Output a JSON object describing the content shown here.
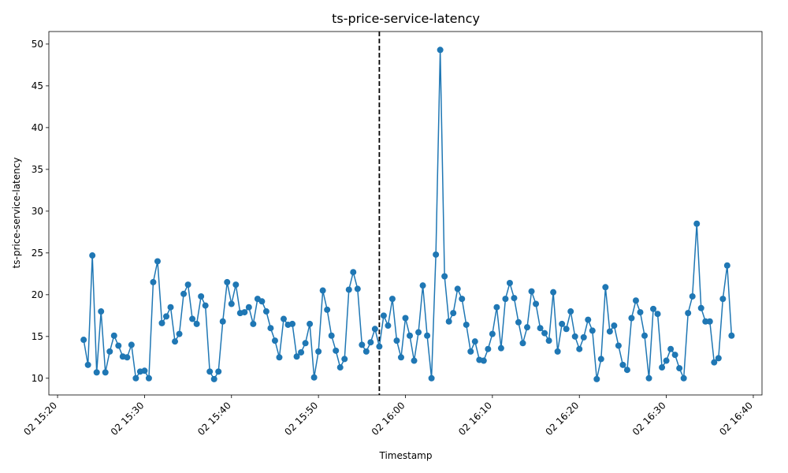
{
  "chart_data": {
    "type": "line",
    "title": "ts-price-service-latency",
    "xlabel": "Timestamp",
    "ylabel": "ts-price-service-latency",
    "x_start": "02 15:23",
    "x_step_minutes": 0.5,
    "xlim": [
      "02 15:19",
      "02 16:41"
    ],
    "ylim": [
      8,
      51.5
    ],
    "x_ticks": [
      "02 15:20",
      "02 15:30",
      "02 15:40",
      "02 15:50",
      "02 16:00",
      "02 16:10",
      "02 16:20",
      "02 16:30",
      "02 16:40"
    ],
    "y_ticks": [
      10,
      15,
      20,
      25,
      30,
      35,
      40,
      45,
      50
    ],
    "vline": "02 15:57",
    "grid": false,
    "series": [
      {
        "color": "#1f77b4",
        "markers": true,
        "values": [
          14.6,
          11.6,
          24.7,
          10.7,
          18.0,
          10.7,
          13.2,
          15.1,
          13.9,
          12.6,
          12.5,
          14.0,
          10.0,
          10.8,
          10.9,
          10.0,
          21.5,
          24.0,
          16.6,
          17.4,
          18.5,
          14.4,
          15.3,
          20.1,
          21.2,
          17.1,
          16.5,
          19.8,
          18.7,
          10.8,
          9.9,
          10.8,
          16.8,
          21.5,
          18.9,
          21.2,
          17.8,
          17.9,
          18.5,
          16.5,
          19.5,
          19.2,
          18.0,
          16.0,
          14.5,
          12.5,
          17.1,
          16.4,
          16.5,
          12.6,
          13.1,
          14.2,
          16.5,
          10.1,
          13.2,
          20.5,
          18.2,
          15.1,
          13.3,
          11.3,
          12.3,
          20.6,
          22.7,
          20.7,
          14.0,
          13.2,
          14.3,
          15.9,
          13.8,
          17.5,
          16.3,
          19.5,
          14.5,
          12.5,
          17.2,
          15.1,
          12.1,
          15.5,
          21.1,
          15.1,
          10.0,
          24.8,
          49.3,
          22.2,
          16.8,
          17.8,
          20.7,
          19.5,
          16.4,
          13.2,
          14.4,
          12.2,
          12.1,
          13.5,
          15.3,
          18.5,
          13.6,
          19.5,
          21.4,
          19.6,
          16.7,
          14.2,
          16.1,
          20.4,
          18.9,
          16.0,
          15.4,
          14.5,
          20.3,
          13.2,
          16.5,
          15.9,
          18.0,
          15.0,
          13.5,
          14.9,
          17.0,
          15.7,
          9.9,
          12.3,
          20.9,
          15.6,
          16.3,
          13.9,
          11.6,
          11.0,
          17.2,
          19.3,
          17.9,
          15.1,
          10.0,
          18.3,
          17.7,
          11.3,
          12.1,
          13.5,
          12.8,
          11.2,
          10.0,
          17.8,
          19.8,
          28.5,
          18.4,
          16.8,
          16.8,
          11.9,
          12.4,
          19.5,
          23.5,
          15.1
        ]
      }
    ]
  }
}
